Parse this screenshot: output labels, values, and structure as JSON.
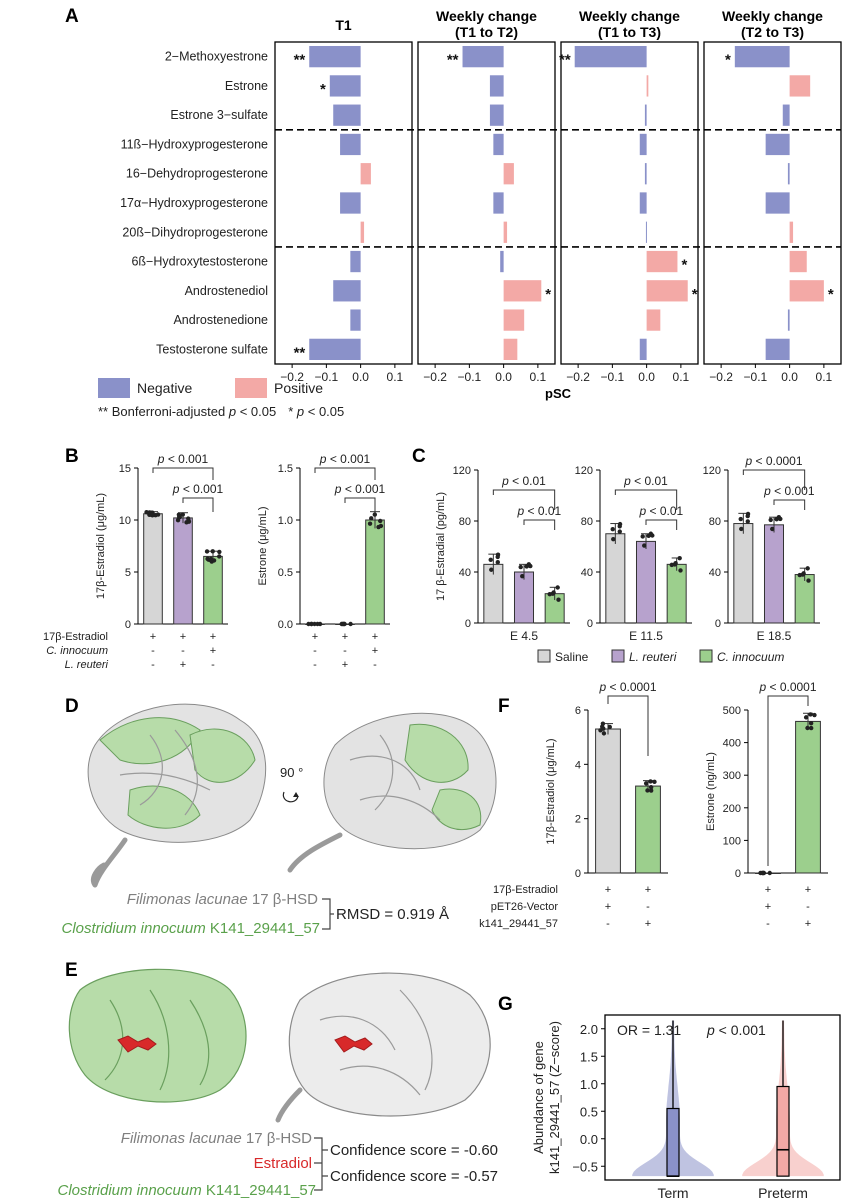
{
  "panels": {
    "A": "A",
    "B": "B",
    "C": "C",
    "D": "D",
    "E": "E",
    "F": "F",
    "G": "G"
  },
  "colors": {
    "negative": "#8a91c9",
    "positive": "#f3a9a6",
    "saline": "#d6d6d6",
    "lreuteri": "#b7a2cd",
    "cinnocuum": "#9ccf8d",
    "ecoli_gray": "#d6d6d6",
    "green": "#9ccf8d"
  },
  "chart_data": [
    {
      "id": "A",
      "type": "bar",
      "orientation": "horizontal",
      "categories": [
        "2−Methoxyestrone",
        "Estrone",
        "Estrone 3−sulfate",
        "11ß−Hydroxyprogesterone",
        "16−Dehydroprogesterone",
        "17α−Hydroxyprogesterone",
        "20ß−Dihydroprogesterone",
        "6ß−Hydroxytestosterone",
        "Androstenediol",
        "Androstenedione",
        "Testosterone sulfate"
      ],
      "xlabel": "pSC",
      "xlim": [
        -0.25,
        0.15
      ],
      "xticks": [
        "−0.2",
        "−0.1",
        "0.0",
        "0.1"
      ],
      "series": [
        {
          "name": "T1",
          "title": "T1",
          "values": [
            -0.15,
            -0.09,
            -0.08,
            -0.06,
            0.03,
            -0.06,
            0.01,
            -0.03,
            -0.08,
            -0.03,
            -0.15
          ],
          "stars": [
            "**",
            "*",
            "",
            "",
            "",
            "",
            "",
            "",
            "",
            "",
            "**"
          ]
        },
        {
          "name": "T1 to T2",
          "title": "Weekly change\n(T1 to T2)",
          "values": [
            -0.12,
            -0.04,
            -0.04,
            -0.03,
            0.03,
            -0.03,
            0.01,
            -0.01,
            0.11,
            0.06,
            0.04
          ],
          "stars": [
            "**",
            "",
            "",
            "",
            "",
            "",
            "",
            "",
            "*",
            "",
            ""
          ]
        },
        {
          "name": "T1 to T3",
          "title": "Weekly change\n(T1 to T3)",
          "values": [
            -0.21,
            0.005,
            -0.005,
            -0.02,
            -0.005,
            -0.02,
            -0.002,
            0.09,
            0.12,
            0.04,
            -0.02
          ],
          "stars": [
            "**",
            "",
            "",
            "",
            "",
            "",
            "",
            "*",
            "*",
            "",
            ""
          ]
        },
        {
          "name": "T2 to T3",
          "title": "Weekly change\n(T2 to T3)",
          "values": [
            -0.16,
            0.06,
            -0.02,
            -0.07,
            -0.005,
            -0.07,
            0.01,
            0.05,
            0.1,
            -0.005,
            -0.07
          ],
          "stars": [
            "*",
            "",
            "",
            "",
            "",
            "",
            "",
            "",
            "*",
            "",
            ""
          ]
        }
      ],
      "legend": [
        {
          "name": "Negative",
          "color": "#8a91c9"
        },
        {
          "name": "Positive",
          "color": "#f3a9a6"
        }
      ],
      "footnote": {
        "dstar": "**",
        "dstar_text": "Bonferroni-adjusted",
        "p_italic": "p",
        "lt": " < 0.05",
        "star": "*",
        "p2": "p",
        "lt2": " < 0.05"
      }
    },
    {
      "id": "B1",
      "type": "bar",
      "ylabel": "17β-Estradiol (μg/mL)",
      "ylim": [
        0,
        15
      ],
      "yticks": [
        "0",
        "5",
        "10",
        "15"
      ],
      "values": [
        10.6,
        10.2,
        6.5
      ],
      "p_values": [
        "p < 0.001",
        "p < 0.001"
      ]
    },
    {
      "id": "B2",
      "type": "bar",
      "ylabel": "Estrone (μg/mL)",
      "ylim": [
        0,
        1.5
      ],
      "yticks": [
        "0.0",
        "0.5",
        "1.0",
        "1.5"
      ],
      "values": [
        0.0,
        0.0,
        1.0
      ],
      "p_values": [
        "p < 0.001",
        "p < 0.001"
      ]
    },
    {
      "id": "C",
      "type": "bar",
      "ylabel": "17 β-Estradial (pg/mL)",
      "ylim": [
        0,
        120
      ],
      "yticks": [
        "0",
        "40",
        "80",
        "120"
      ],
      "categories": [
        "E 4.5",
        "E 11.5",
        "E 18.5"
      ],
      "series": [
        {
          "name": "Saline",
          "values": [
            46,
            70,
            78
          ]
        },
        {
          "name": "L. reuteri",
          "values": [
            40,
            64,
            77
          ]
        },
        {
          "name": "C. innocuum",
          "values": [
            23,
            46,
            38
          ]
        }
      ],
      "p_values": [
        [
          "p < 0.01",
          "p < 0.01"
        ],
        [
          "p < 0.01",
          "p < 0.01"
        ],
        [
          "p < 0.0001",
          "p < 0.001"
        ]
      ]
    },
    {
      "id": "F1",
      "type": "bar",
      "ylabel": "17β-Estradiol (μg/mL)",
      "ylim": [
        0,
        6
      ],
      "yticks": [
        "0",
        "2",
        "4",
        "6"
      ],
      "values": [
        5.3,
        3.2
      ],
      "p_values": [
        "p < 0.0001"
      ]
    },
    {
      "id": "F2",
      "type": "bar",
      "ylabel": "Estrone (ng/mL)",
      "ylim": [
        0,
        500
      ],
      "yticks": [
        "0",
        "100",
        "200",
        "300",
        "400",
        "500"
      ],
      "values": [
        0,
        465
      ],
      "p_values": [
        "p < 0.0001"
      ]
    },
    {
      "id": "G",
      "type": "violin",
      "ylabel_line1": "Abundance of gene",
      "ylabel_line2": "k141_29441_57 (Z−score)",
      "categories": [
        "Term",
        "Preterm"
      ],
      "ylim": [
        -0.75,
        2.25
      ],
      "yticks": [
        "−0.5",
        "0.0",
        "0.5",
        "1.0",
        "1.5",
        "2.0"
      ],
      "box": [
        {
          "name": "Term",
          "min": -0.68,
          "q1": -0.68,
          "median": -0.68,
          "q3": 0.55,
          "max": 2.15
        },
        {
          "name": "Preterm",
          "min": -0.68,
          "q1": -0.68,
          "median": -0.2,
          "q3": 0.95,
          "max": 2.15
        }
      ],
      "annotation": "OR = 1.31",
      "annotation_p": "p < 0.001"
    }
  ],
  "panelB": {
    "rows": [
      {
        "label": "17β-Estradiol",
        "signs1": [
          "+",
          "+",
          "+"
        ],
        "signs2": [
          "+",
          "+",
          "+"
        ]
      },
      {
        "label": "C. innocuum",
        "signs1": [
          "-",
          "-",
          "+"
        ],
        "signs2": [
          "-",
          "-",
          "+"
        ]
      },
      {
        "label": "L. reuteri",
        "signs1": [
          "-",
          "+",
          "-"
        ],
        "signs2": [
          "-",
          "+",
          "-"
        ]
      }
    ]
  },
  "panelC_legend": [
    {
      "name": "Saline"
    },
    {
      "name": "L. reuteri"
    },
    {
      "name": "C. innocuum"
    }
  ],
  "panelF": {
    "rows": [
      {
        "label": "17β-Estradiol",
        "signs1": [
          "+",
          "+"
        ],
        "signs2": [
          "+",
          "+"
        ]
      },
      {
        "label": "pET26-Vector",
        "signs1": [
          "+",
          "-"
        ],
        "signs2": [
          "+",
          "-"
        ]
      },
      {
        "label": "k141_29441_57",
        "signs1": [
          "-",
          "+"
        ],
        "signs2": [
          "-",
          "+"
        ]
      }
    ]
  },
  "panelD": {
    "rotation": "90 °",
    "species1": "Filimonas lacunae",
    "enzyme1": " 17 β-HSD",
    "species2": "Clostridium innocuum",
    "enzyme2": " K141_29441_57",
    "rmsd": "RMSD = 0.919 Å"
  },
  "panelE": {
    "species1": "Filimonas lacunae",
    "enzyme1": " 17 β-HSD",
    "ligand": "Estradiol",
    "species2": "Clostridium innocuum",
    "enzyme2": " K141_29441_57",
    "score1": "Confidence score = -0.60",
    "score2": "Confidence score = -0.57"
  }
}
